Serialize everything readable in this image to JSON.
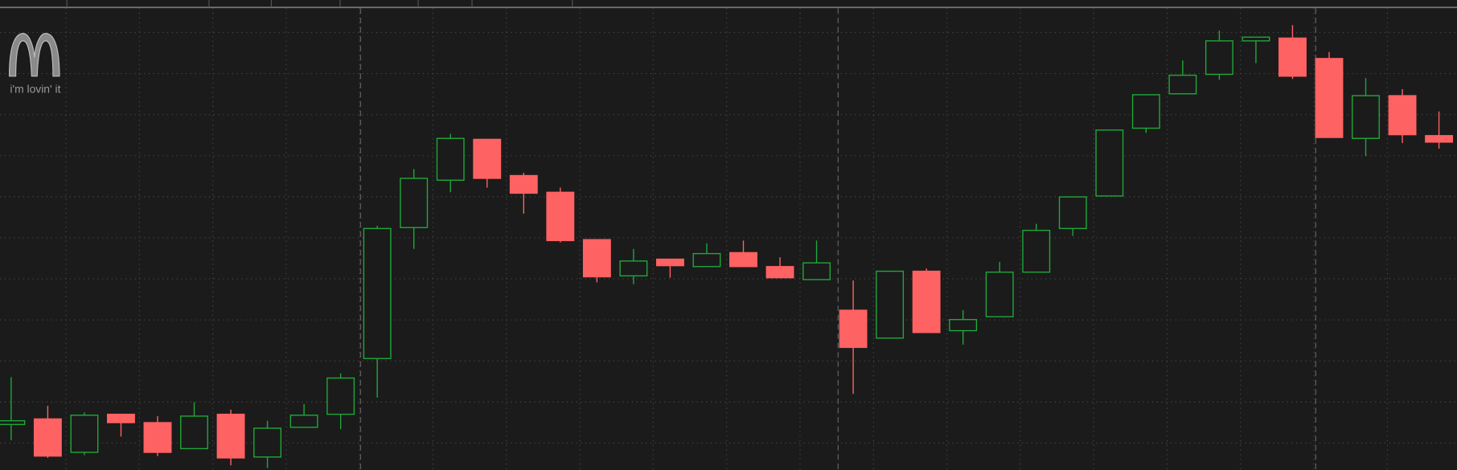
{
  "chart_data": {
    "type": "candlestick",
    "logo_text": "i'm lovin' it",
    "ylim": [
      -6,
      498
    ],
    "up_color": "#1fa83a",
    "down_color": "#ff6262",
    "open": [
      43,
      49,
      13,
      54,
      45,
      17,
      54,
      8,
      40,
      54,
      114,
      255,
      306,
      350,
      311,
      293,
      242,
      203,
      221,
      213,
      228,
      213,
      199,
      166,
      136,
      208,
      144,
      159,
      207,
      254,
      289,
      362,
      399,
      420,
      456,
      459,
      437,
      351,
      397,
      354
    ],
    "high": [
      94,
      63,
      56,
      54,
      52,
      67,
      59,
      47,
      65,
      98,
      257,
      318,
      356,
      350,
      314,
      298,
      242,
      232,
      221,
      238,
      241,
      223,
      241,
      198,
      208,
      211,
      166,
      218,
      259,
      288,
      360,
      398,
      435,
      467,
      460,
      473,
      444,
      416,
      404,
      380
    ],
    "low": [
      26,
      7,
      10,
      30,
      9,
      17,
      -1,
      -4,
      40,
      38,
      72,
      232,
      293,
      298,
      270,
      239,
      196,
      194,
      201,
      213,
      213,
      201,
      199,
      76,
      136,
      142,
      129,
      159,
      207,
      246,
      289,
      357,
      399,
      414,
      432,
      415,
      352,
      332,
      346,
      340
    ],
    "close": [
      47,
      9,
      53,
      45,
      13,
      52,
      7,
      39,
      53,
      93,
      254,
      308,
      351,
      308,
      292,
      241,
      202,
      219,
      214,
      227,
      213,
      201,
      217,
      126,
      208,
      142,
      156,
      207,
      252,
      288,
      360,
      398,
      419,
      456,
      460,
      418,
      352,
      397,
      355,
      347
    ]
  }
}
